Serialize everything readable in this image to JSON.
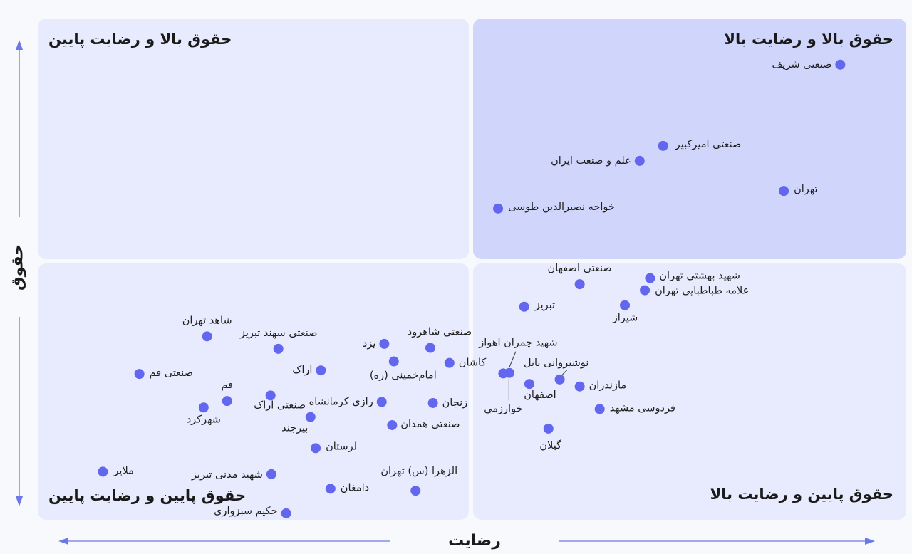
{
  "chart_data": {
    "type": "scatter",
    "xlabel": "رضایت",
    "ylabel": "حقوق",
    "xlim": [
      0,
      100
    ],
    "ylim": [
      0,
      100
    ],
    "grid": false,
    "quadrants": {
      "top_left": "حقوق بالا و رضایت پایین",
      "top_right": "حقوق بالا و رضایت بالا",
      "bottom_left": "حقوق پایین و رضایت پایین",
      "bottom_right": "حقوق پایین و رضایت بالا"
    },
    "points": [
      {
        "label": "صنعتی شریف",
        "x": 92.4,
        "y": 90.8
      },
      {
        "label": "صنعتی امیرکبیر",
        "x": 72.0,
        "y": 74.6
      },
      {
        "label": "علم و صنعت ایران",
        "x": 69.3,
        "y": 71.6
      },
      {
        "label": "تهران",
        "x": 85.9,
        "y": 65.6
      },
      {
        "label": "خواجه نصیرالدین طوسی",
        "x": 53.0,
        "y": 62.1
      },
      {
        "label": "صنعتی اصفهان",
        "x": 62.4,
        "y": 47.0
      },
      {
        "label": "شهید بهشتی تهران",
        "x": 70.5,
        "y": 48.2
      },
      {
        "label": "علامه طباطبایی تهران",
        "x": 69.9,
        "y": 45.8
      },
      {
        "label": "تبریز",
        "x": 56.0,
        "y": 42.5
      },
      {
        "label": "شیراز",
        "x": 67.6,
        "y": 42.8
      },
      {
        "label": "شاهد تهران",
        "x": 19.5,
        "y": 36.6
      },
      {
        "label": "صنعتی سهند تبریز",
        "x": 27.7,
        "y": 34.1
      },
      {
        "label": "یزد",
        "x": 39.9,
        "y": 35.1
      },
      {
        "label": "صنعتی شاهرود",
        "x": 45.2,
        "y": 34.3
      },
      {
        "label": "امام‌خمینی (ره)",
        "x": 41.0,
        "y": 31.6
      },
      {
        "label": "کاشان",
        "x": 47.4,
        "y": 31.3
      },
      {
        "label": "اراک",
        "x": 32.6,
        "y": 29.8
      },
      {
        "label": "صنعتی قم",
        "x": 11.7,
        "y": 29.1
      },
      {
        "label": "شهید چمران اهواز",
        "x": 54.3,
        "y": 29.3
      },
      {
        "label": "خوارزمی",
        "x": 53.6,
        "y": 29.2
      },
      {
        "label": "نوشیروانی بابل",
        "x": 60.1,
        "y": 28.0
      },
      {
        "label": "اصفهان",
        "x": 56.6,
        "y": 27.1
      },
      {
        "label": "مازندران",
        "x": 62.4,
        "y": 26.6
      },
      {
        "label": "قم",
        "x": 21.8,
        "y": 23.7
      },
      {
        "label": "صنعتی اراک",
        "x": 26.8,
        "y": 24.8
      },
      {
        "label": "شهرکرد",
        "x": 19.1,
        "y": 22.4
      },
      {
        "label": "رازی کرمانشاه",
        "x": 39.6,
        "y": 23.5
      },
      {
        "label": "زنجان",
        "x": 45.5,
        "y": 23.3
      },
      {
        "label": "فردوسی مشهد",
        "x": 64.7,
        "y": 22.1
      },
      {
        "label": "بیرجند",
        "x": 31.4,
        "y": 20.5
      },
      {
        "label": "صنعتی همدان",
        "x": 40.8,
        "y": 18.9
      },
      {
        "label": "گیلان",
        "x": 58.8,
        "y": 18.2
      },
      {
        "label": "لرستان",
        "x": 32.0,
        "y": 14.3
      },
      {
        "label": "ملایر",
        "x": 7.5,
        "y": 9.6
      },
      {
        "label": "شهید مدنی تبریز",
        "x": 26.9,
        "y": 9.1
      },
      {
        "label": "دامغان",
        "x": 33.7,
        "y": 6.2
      },
      {
        "label": "الزهرا (س) تهران",
        "x": 43.5,
        "y": 5.8
      },
      {
        "label": "حکیم سبزواری",
        "x": 28.6,
        "y": 1.3
      }
    ]
  }
}
